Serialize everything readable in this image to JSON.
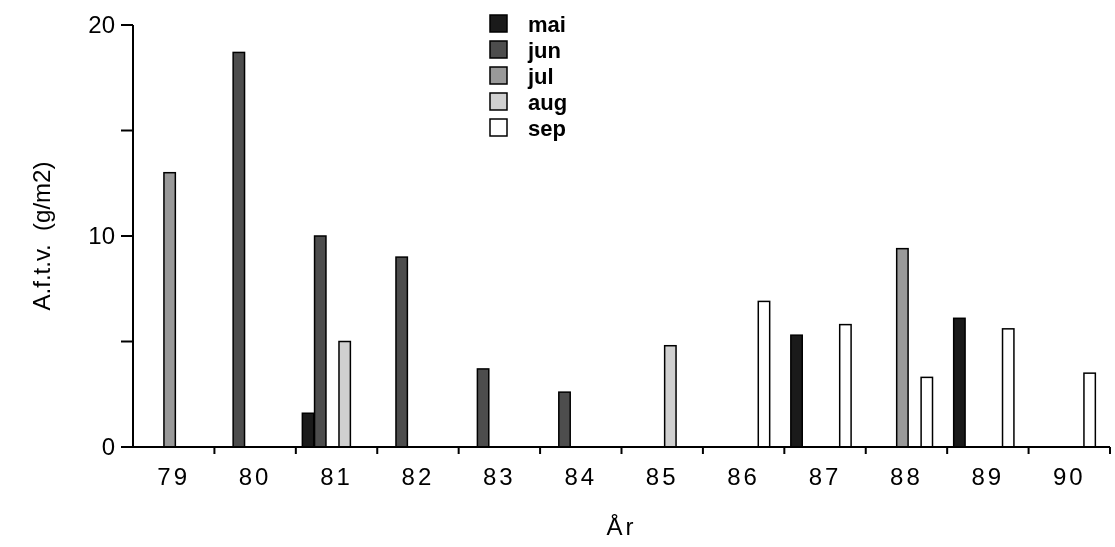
{
  "chart_data": {
    "type": "bar",
    "xlabel": "År",
    "ylabel": "A.f.t.v.  (g/m2)",
    "categories": [
      "79",
      "80",
      "81",
      "82",
      "83",
      "84",
      "85",
      "86",
      "87",
      "88",
      "89",
      "90"
    ],
    "series": [
      {
        "name": "mai",
        "color": "#1a1a1a",
        "values": [
          null,
          null,
          1.6,
          null,
          null,
          null,
          null,
          null,
          5.3,
          null,
          6.1,
          null
        ]
      },
      {
        "name": "jun",
        "color": "#4d4d4d",
        "values": [
          null,
          18.7,
          10,
          9,
          3.7,
          2.6,
          null,
          null,
          null,
          null,
          null,
          null
        ]
      },
      {
        "name": "jul",
        "color": "#999999",
        "values": [
          13,
          null,
          null,
          null,
          null,
          null,
          null,
          null,
          null,
          9.4,
          null,
          null
        ]
      },
      {
        "name": "aug",
        "color": "#d0d0d0",
        "values": [
          null,
          null,
          5,
          null,
          null,
          null,
          4.8,
          null,
          null,
          null,
          null,
          null
        ]
      },
      {
        "name": "sep",
        "color": "#ffffff",
        "values": [
          null,
          null,
          null,
          null,
          null,
          null,
          null,
          6.9,
          5.8,
          3.3,
          5.6,
          3.5
        ]
      }
    ],
    "ylim": [
      0,
      20
    ],
    "yticks": [
      0,
      {
        "value": 5,
        "label": null
      },
      10,
      {
        "value": 15,
        "label": null
      },
      20
    ],
    "grid": false,
    "legend": "top"
  }
}
